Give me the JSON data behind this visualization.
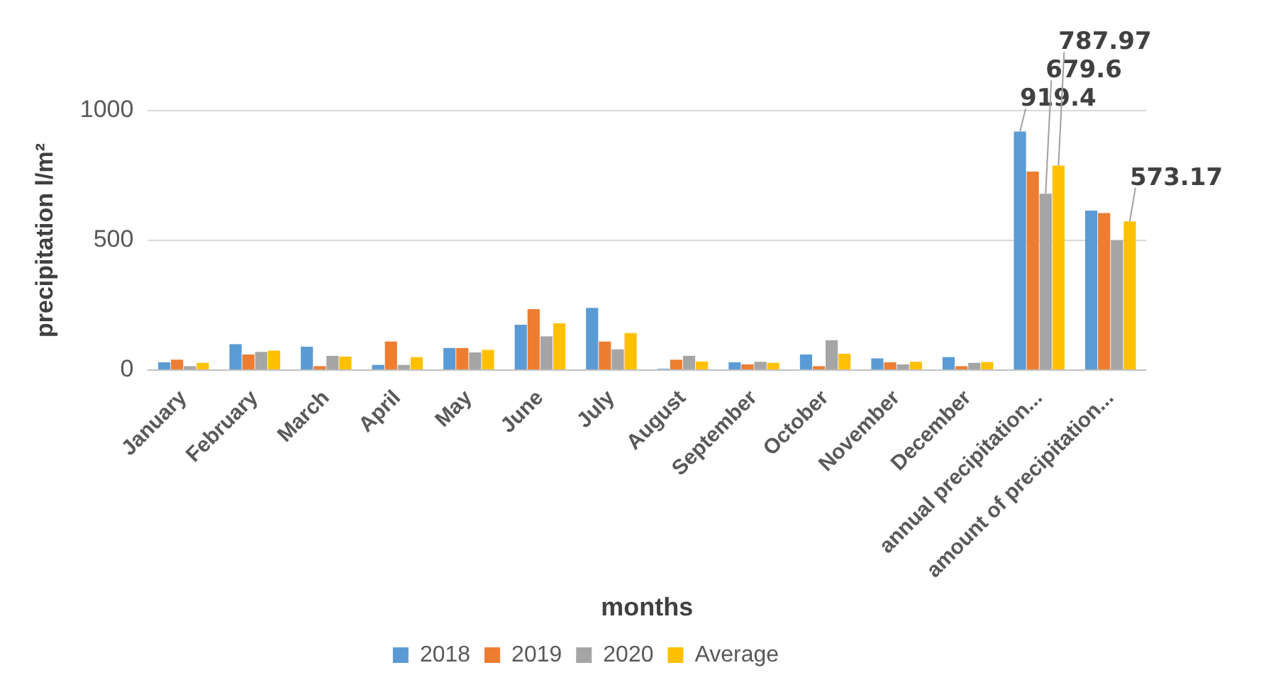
{
  "chart_data": {
    "type": "bar",
    "xlabel": "months",
    "ylabel": "precipitation l/m²",
    "categories": [
      "January",
      "February",
      "March",
      "April",
      "May",
      "June",
      "July",
      "August",
      "September",
      "October",
      "November",
      "December",
      "annual precipitation...",
      "amount of precipitation..."
    ],
    "series": [
      {
        "name": "2018",
        "color": "#5b9bd5",
        "values": [
          30,
          100,
          90,
          20,
          85,
          175,
          240,
          5,
          30,
          60,
          45,
          50,
          919.4,
          615
        ],
        "value_labels": [
          null,
          null,
          null,
          null,
          null,
          null,
          null,
          null,
          null,
          null,
          null,
          null,
          "919.4",
          null
        ]
      },
      {
        "name": "2019",
        "color": "#ed7d31",
        "values": [
          40,
          60,
          15,
          110,
          85,
          235,
          110,
          40,
          22,
          15,
          30,
          15,
          765,
          605
        ]
      },
      {
        "name": "2020",
        "color": "#a5a5a5",
        "values": [
          15,
          70,
          55,
          20,
          68,
          130,
          80,
          55,
          32,
          115,
          22,
          28,
          679.6,
          500
        ],
        "value_labels": [
          null,
          null,
          null,
          null,
          null,
          null,
          null,
          null,
          null,
          null,
          null,
          null,
          "679.6",
          null
        ]
      },
      {
        "name": "Average",
        "color": "#ffc000",
        "values": [
          28,
          75,
          52,
          50,
          78,
          180,
          143,
          33,
          28,
          63,
          32,
          31,
          787.97,
          573.17
        ],
        "value_labels": [
          null,
          null,
          null,
          null,
          null,
          null,
          null,
          null,
          null,
          null,
          null,
          null,
          "787.97",
          "573.17"
        ]
      }
    ],
    "ylim": [
      0,
      1000
    ],
    "yticks": [
      0,
      500,
      1000
    ],
    "grid": "y",
    "legend": "bottom"
  }
}
